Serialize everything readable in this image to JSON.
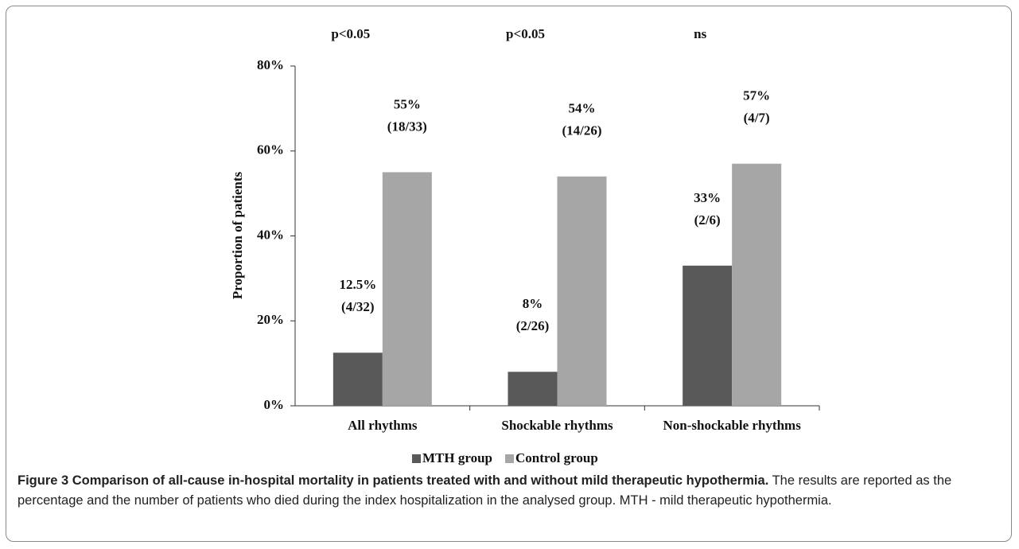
{
  "chart_data": {
    "type": "bar",
    "categories": [
      "All rhythms",
      "Shockable rhythms",
      "Non-shockable rhythms"
    ],
    "significance": [
      "p<0.05",
      "p<0.05",
      "ns"
    ],
    "y_label": "Proportion of patients",
    "series": [
      {
        "name": "MTH group",
        "color": "#595959",
        "values": [
          12.5,
          8,
          33
        ],
        "value_labels": [
          "12.5%",
          "8%",
          "33%"
        ],
        "counts": [
          "(4/32)",
          "(2/26)",
          "(2/6)"
        ]
      },
      {
        "name": "Control group",
        "color": "#a6a6a6",
        "values": [
          55,
          54,
          57
        ],
        "value_labels": [
          "55%",
          "54%",
          "57%"
        ],
        "counts": [
          "(18/33)",
          "(14/26)",
          "(4/7)"
        ]
      }
    ],
    "ylim": [
      0,
      80
    ],
    "yticks": [
      {
        "value": 0,
        "label": "0%"
      },
      {
        "value": 20,
        "label": "20%"
      },
      {
        "value": 40,
        "label": "40%"
      },
      {
        "value": 60,
        "label": "60%"
      },
      {
        "value": 80,
        "label": "80%"
      }
    ],
    "legend": "bottom"
  },
  "caption": {
    "label": "Figure 3 Comparison of all-cause in-hospital mortality in patients treated with and without mild therapeutic hypothermia.",
    "text": "The results are reported as the percentage and the number of patients who died during the index hospitalization in the analysed group. MTH - mild therapeutic hypothermia."
  }
}
